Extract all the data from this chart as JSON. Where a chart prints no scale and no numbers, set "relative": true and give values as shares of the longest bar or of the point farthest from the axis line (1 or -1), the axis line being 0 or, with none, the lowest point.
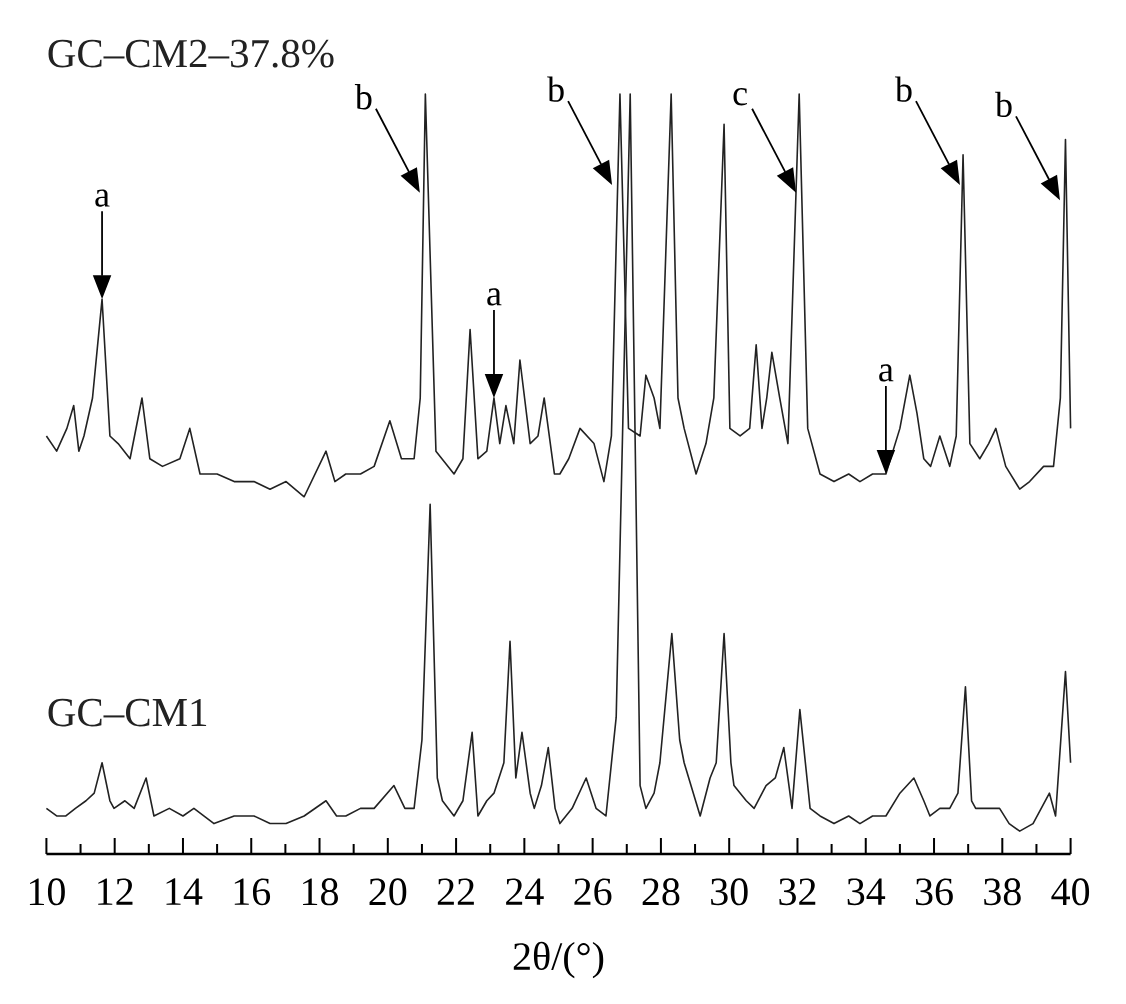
{
  "chart_data": {
    "type": "line",
    "relative": true,
    "xlabel": "2θ/(°)",
    "xlim": [
      10,
      40
    ],
    "xticks": [
      10,
      {
        "value": 11,
        "label": null
      },
      12,
      {
        "value": 13,
        "label": null
      },
      14,
      {
        "value": 15,
        "label": null
      },
      16,
      {
        "value": 17,
        "label": null
      },
      18,
      {
        "value": 19,
        "label": null
      },
      20,
      {
        "value": 21,
        "label": null
      },
      22,
      {
        "value": 23,
        "label": null
      },
      24,
      {
        "value": 25,
        "label": null
      },
      26,
      {
        "value": 27,
        "label": null
      },
      28,
      {
        "value": 29,
        "label": null
      },
      30,
      {
        "value": 31,
        "label": null
      },
      32,
      {
        "value": 33,
        "label": null
      },
      34,
      {
        "value": 35,
        "label": null
      },
      36,
      {
        "value": 37,
        "label": null
      },
      38,
      {
        "value": 39,
        "label": null
      },
      40
    ],
    "series": [
      {
        "name": "GC–CM2–37.8%",
        "color": "#222222",
        "x": [
          10.0,
          10.3,
          10.6,
          10.8,
          10.95,
          11.1,
          11.35,
          11.63,
          11.86,
          12.1,
          12.45,
          12.8,
          13.03,
          13.4,
          13.91,
          14.2,
          14.5,
          15.0,
          15.5,
          16.08,
          16.55,
          17.02,
          17.55,
          18.19,
          18.45,
          18.77,
          19.2,
          19.6,
          20.06,
          20.4,
          20.77,
          20.95,
          21.1,
          21.41,
          21.94,
          22.2,
          22.41,
          22.64,
          22.9,
          23.11,
          23.28,
          23.46,
          23.69,
          23.87,
          24.17,
          24.4,
          24.58,
          24.88,
          25.04,
          25.3,
          25.63,
          26.04,
          26.33,
          26.55,
          26.8,
          27.05,
          27.39,
          27.56,
          27.8,
          27.97,
          28.3,
          28.5,
          28.68,
          29.03,
          29.32,
          29.55,
          29.85,
          30.02,
          30.32,
          30.6,
          30.79,
          30.96,
          31.1,
          31.25,
          31.48,
          31.72,
          32.05,
          32.3,
          32.66,
          33.07,
          33.5,
          33.83,
          34.2,
          34.59,
          35.0,
          35.29,
          35.5,
          35.7,
          35.9,
          36.17,
          36.46,
          36.65,
          36.85,
          37.05,
          37.34,
          37.6,
          37.81,
          38.1,
          38.51,
          38.8,
          39.21,
          39.5,
          39.7,
          39.85,
          40.0
        ],
        "values": [
          0.55,
          0.53,
          0.56,
          0.59,
          0.53,
          0.55,
          0.6,
          0.73,
          0.55,
          0.54,
          0.52,
          0.6,
          0.52,
          0.51,
          0.52,
          0.56,
          0.5,
          0.5,
          0.49,
          0.49,
          0.48,
          0.49,
          0.47,
          0.53,
          0.49,
          0.5,
          0.5,
          0.51,
          0.57,
          0.52,
          0.52,
          0.6,
          1.0,
          0.53,
          0.5,
          0.52,
          0.69,
          0.52,
          0.53,
          0.6,
          0.54,
          0.59,
          0.54,
          0.65,
          0.54,
          0.55,
          0.6,
          0.5,
          0.5,
          0.52,
          0.56,
          0.54,
          0.49,
          0.55,
          1.0,
          0.56,
          0.55,
          0.63,
          0.6,
          0.56,
          1.0,
          0.6,
          0.56,
          0.5,
          0.54,
          0.6,
          0.96,
          0.56,
          0.55,
          0.56,
          0.67,
          0.56,
          0.6,
          0.66,
          0.6,
          0.54,
          1.0,
          0.56,
          0.5,
          0.49,
          0.5,
          0.49,
          0.5,
          0.5,
          0.56,
          0.63,
          0.58,
          0.52,
          0.51,
          0.55,
          0.51,
          0.55,
          0.92,
          0.54,
          0.52,
          0.54,
          0.56,
          0.51,
          0.48,
          0.49,
          0.51,
          0.51,
          0.6,
          0.94,
          0.56
        ]
      },
      {
        "name": "GC–CM1",
        "color": "#222222",
        "x": [
          10.0,
          10.3,
          10.57,
          10.85,
          11.16,
          11.4,
          11.63,
          11.86,
          11.98,
          12.3,
          12.57,
          12.92,
          13.15,
          13.6,
          14.0,
          14.32,
          14.91,
          15.5,
          16.08,
          16.55,
          17.02,
          17.55,
          18.19,
          18.5,
          18.77,
          19.2,
          19.6,
          20.18,
          20.5,
          20.77,
          21.0,
          21.24,
          21.45,
          21.6,
          21.94,
          22.2,
          22.47,
          22.64,
          22.9,
          23.11,
          23.4,
          23.58,
          23.75,
          23.93,
          24.17,
          24.29,
          24.5,
          24.7,
          24.9,
          25.04,
          25.4,
          25.81,
          26.1,
          26.39,
          26.69,
          27.1,
          27.39,
          27.56,
          27.8,
          27.97,
          28.32,
          28.55,
          28.68,
          29.15,
          29.44,
          29.62,
          29.85,
          30.05,
          30.14,
          30.5,
          30.73,
          31.08,
          31.35,
          31.6,
          31.84,
          32.07,
          32.37,
          32.66,
          33.07,
          33.5,
          33.83,
          34.2,
          34.59,
          35.0,
          35.41,
          35.7,
          35.88,
          36.17,
          36.46,
          36.7,
          36.92,
          37.1,
          37.22,
          37.5,
          37.92,
          38.2,
          38.51,
          38.9,
          39.38,
          39.56,
          39.85,
          40.0
        ],
        "values": [
          0.06,
          0.05,
          0.05,
          0.06,
          0.07,
          0.08,
          0.12,
          0.07,
          0.06,
          0.07,
          0.06,
          0.1,
          0.05,
          0.06,
          0.05,
          0.06,
          0.04,
          0.05,
          0.05,
          0.04,
          0.04,
          0.05,
          0.07,
          0.05,
          0.05,
          0.06,
          0.06,
          0.09,
          0.06,
          0.06,
          0.15,
          0.46,
          0.1,
          0.07,
          0.05,
          0.07,
          0.16,
          0.05,
          0.07,
          0.08,
          0.12,
          0.28,
          0.1,
          0.16,
          0.08,
          0.06,
          0.09,
          0.14,
          0.06,
          0.04,
          0.06,
          0.1,
          0.06,
          0.05,
          0.18,
          1.0,
          0.09,
          0.06,
          0.08,
          0.12,
          0.29,
          0.15,
          0.12,
          0.05,
          0.1,
          0.12,
          0.29,
          0.12,
          0.09,
          0.07,
          0.06,
          0.09,
          0.1,
          0.14,
          0.06,
          0.19,
          0.06,
          0.05,
          0.04,
          0.05,
          0.04,
          0.05,
          0.05,
          0.08,
          0.1,
          0.07,
          0.05,
          0.06,
          0.06,
          0.08,
          0.22,
          0.07,
          0.06,
          0.06,
          0.06,
          0.04,
          0.03,
          0.04,
          0.08,
          0.05,
          0.24,
          0.12
        ]
      }
    ],
    "annotations": [
      {
        "text": "a",
        "x": 11.63,
        "y": 0.73
      },
      {
        "text": "b",
        "x": 20.94,
        "y": 0.87
      },
      {
        "text": "a",
        "x": 23.11,
        "y": 0.6
      },
      {
        "text": "b",
        "x": 26.57,
        "y": 0.88
      },
      {
        "text": "c",
        "x": 31.96,
        "y": 0.87
      },
      {
        "text": "a",
        "x": 34.59,
        "y": 0.5
      },
      {
        "text": "b",
        "x": 36.76,
        "y": 0.88
      },
      {
        "text": "b",
        "x": 39.69,
        "y": 0.86
      }
    ]
  }
}
